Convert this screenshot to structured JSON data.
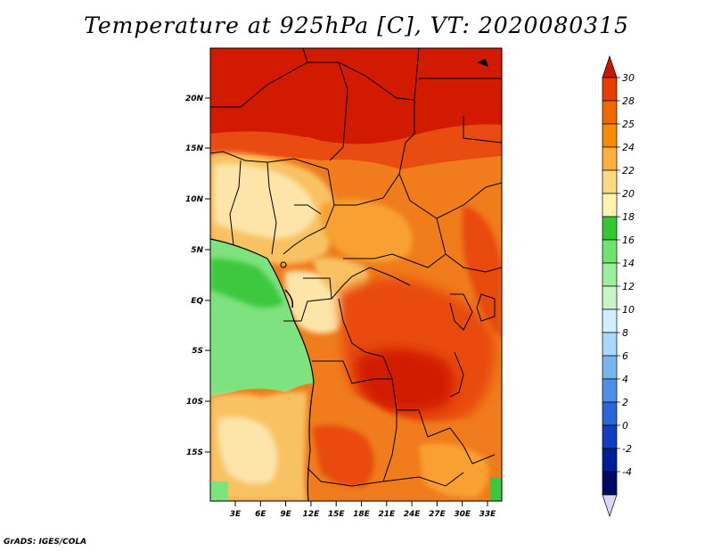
{
  "title": "Temperature at 925hPa [C], VT: 2020080315",
  "credit": "GrADS: IGES/COLA",
  "lat_labels": [
    "20N",
    "15N",
    "10N",
    "5N",
    "EQ",
    "5S",
    "10S",
    "15S"
  ],
  "lon_labels": [
    "3E",
    "6E",
    "9E",
    "12E",
    "15E",
    "18E",
    "21E",
    "24E",
    "27E",
    "30E",
    "33E"
  ],
  "colorbar": {
    "labels": [
      "30",
      "28",
      "25",
      "24",
      "22",
      "20",
      "18",
      "16",
      "14",
      "12",
      "10",
      "8",
      "6",
      "4",
      "2",
      "0",
      "-2",
      "-4"
    ],
    "colors": [
      "#cc1400",
      "#e83c00",
      "#f06800",
      "#f88c00",
      "#fcb040",
      "#fdd882",
      "#fff3b4",
      "#32c832",
      "#6ee46e",
      "#9af09a",
      "#c8f5c8",
      "#d2eefc",
      "#a8d8fa",
      "#78b4f0",
      "#4e8ee6",
      "#2a66d8",
      "#143cbe",
      "#001e96",
      "#000a64",
      "#d8d8f4"
    ]
  },
  "map": {
    "lon_range": [
      0,
      35
    ],
    "lat_range": [
      -20,
      25
    ],
    "field_colors": {
      "hot": "#d21a00",
      "warm": "#e84c10",
      "orange": "#f07c1c",
      "amber": "#f8a030",
      "tan": "#f8c264",
      "cream": "#fde4a8",
      "green": "#3cc83c",
      "lightgreen": "#7ee27e",
      "border": "#000000"
    }
  }
}
